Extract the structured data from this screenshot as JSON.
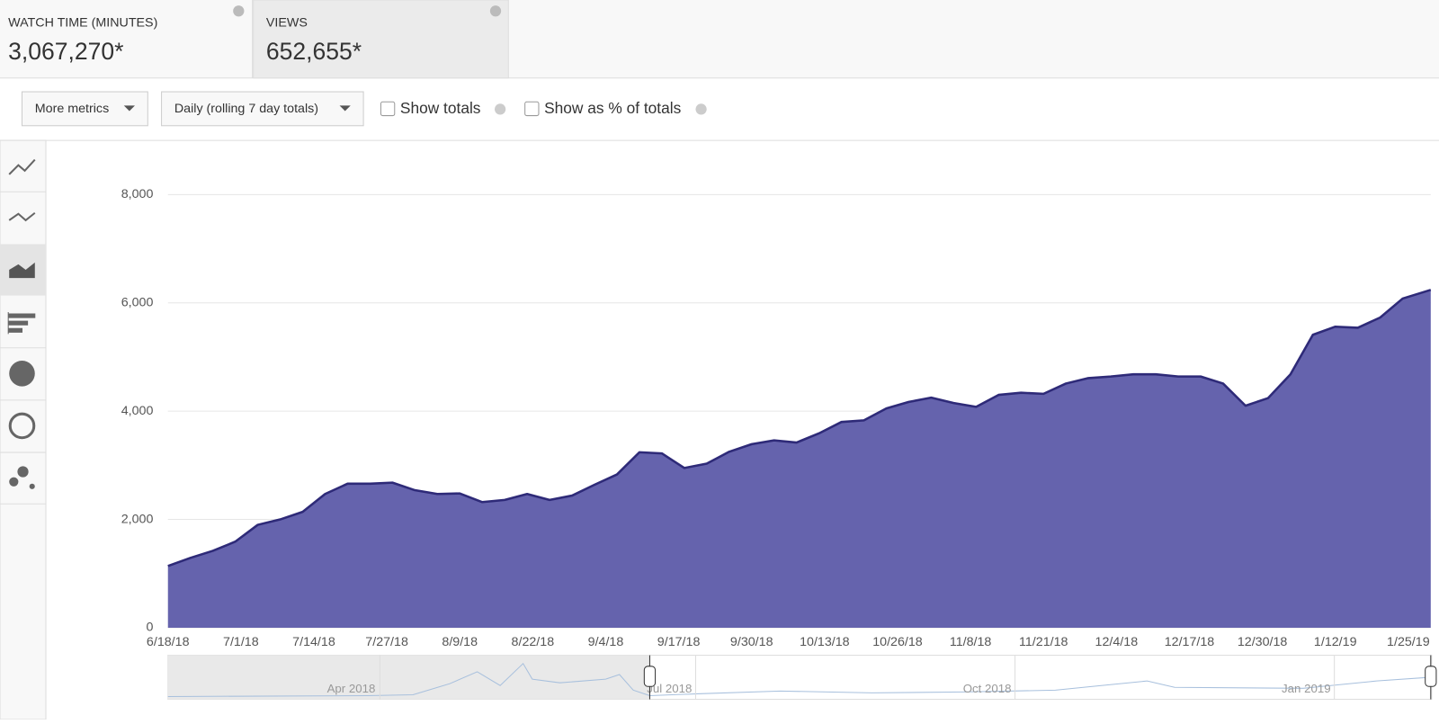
{
  "cards": [
    {
      "label": "WATCH TIME (MINUTES)",
      "value": "3,067,270*"
    },
    {
      "label": "VIEWS",
      "value": "652,655*"
    }
  ],
  "toolbar": {
    "metrics_button": "More metrics",
    "period_button": "Daily (rolling 7 day totals)",
    "show_totals": "Show totals",
    "show_percent": "Show as % of totals"
  },
  "navigator": {
    "labels": [
      "Apr 2018",
      "Jul 2018",
      "Oct 2018",
      "Jan 2019"
    ]
  },
  "chart_data": {
    "type": "area",
    "x": [
      "6/18/18",
      "6/22/18",
      "6/26/18",
      "6/30/18",
      "7/4/18",
      "7/8/18",
      "7/12/18",
      "7/16/18",
      "7/20/18",
      "7/24/18",
      "7/28/18",
      "8/1/18",
      "8/5/18",
      "8/9/18",
      "8/13/18",
      "8/17/18",
      "8/21/18",
      "8/25/18",
      "8/29/18",
      "9/2/18",
      "9/6/18",
      "9/10/18",
      "9/14/18",
      "9/18/18",
      "9/22/18",
      "9/26/18",
      "9/30/18",
      "10/4/18",
      "10/8/18",
      "10/12/18",
      "10/16/18",
      "10/20/18",
      "10/24/18",
      "10/28/18",
      "11/1/18",
      "11/5/18",
      "11/9/18",
      "11/13/18",
      "11/17/18",
      "11/21/18",
      "11/25/18",
      "11/29/18",
      "12/3/18",
      "12/7/18",
      "12/11/18",
      "12/15/18",
      "12/19/18",
      "12/23/18",
      "12/27/18",
      "12/31/18",
      "1/4/19",
      "1/8/19",
      "1/12/19",
      "1/16/19",
      "1/20/19",
      "1/24/19",
      "1/29/19"
    ],
    "series": [
      {
        "name": "VIEWS",
        "color": "#6563ad",
        "line_color": "#2e2a78",
        "values": [
          1140,
          1290,
          1420,
          1590,
          1900,
          2000,
          2140,
          2470,
          2660,
          2660,
          2680,
          2540,
          2470,
          2480,
          2320,
          2360,
          2470,
          2360,
          2440,
          2640,
          2830,
          3240,
          3220,
          2950,
          3030,
          3250,
          3390,
          3460,
          3420,
          3590,
          3800,
          3830,
          4050,
          4170,
          4250,
          4150,
          4080,
          4300,
          4340,
          4320,
          4510,
          4610,
          4640,
          4680,
          4680,
          4640,
          4640,
          4510,
          4100,
          4240,
          4680,
          5410,
          5560,
          5540,
          5730,
          6080,
          6240
        ]
      }
    ],
    "xlim": [
      "6/18/18",
      "1/29/19"
    ],
    "xticks": [
      "6/18/18",
      "7/1/18",
      "7/14/18",
      "7/27/18",
      "8/9/18",
      "8/22/18",
      "9/4/18",
      "9/17/18",
      "9/30/18",
      "10/13/18",
      "10/26/18",
      "11/8/18",
      "11/21/18",
      "12/4/18",
      "12/17/18",
      "12/30/18",
      "1/12/19",
      "1/25/19"
    ],
    "ylim": [
      0,
      8000
    ],
    "yticks": [
      0,
      {
        "value": 2000,
        "label": "2,000"
      },
      {
        "value": 4000,
        "label": "4,000"
      },
      {
        "value": 6000,
        "label": "6,000"
      },
      {
        "value": 8000,
        "label": "8,000"
      }
    ],
    "grid": true
  }
}
